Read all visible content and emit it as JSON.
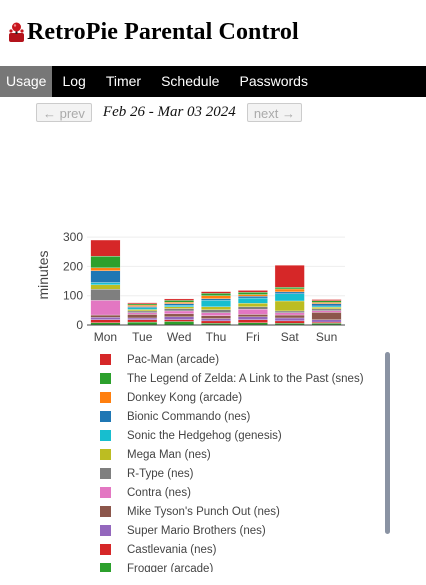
{
  "app": {
    "title": "RetroPie Parental Control",
    "logo_icon": "joystick-icon"
  },
  "nav": {
    "tabs": [
      {
        "label": "Usage",
        "active": true
      },
      {
        "label": "Log"
      },
      {
        "label": "Timer"
      },
      {
        "label": "Schedule"
      },
      {
        "label": "Passwords"
      }
    ]
  },
  "week": {
    "prev_label": "← prev",
    "range": "Feb 26 - Mar 03 2024",
    "next_label": "next →"
  },
  "chart_data": {
    "type": "bar",
    "stacked": true,
    "ylabel": "minutes",
    "ylim": [
      0,
      350
    ],
    "yticks": [
      0,
      100,
      200,
      300
    ],
    "categories": [
      "Mon",
      "Tue",
      "Wed",
      "Thu",
      "Fri",
      "Sat",
      "Sun"
    ],
    "series": [
      {
        "name": "Pac-Man (arcade)",
        "color": "#d62728",
        "values": [
          55,
          4,
          5,
          6,
          6,
          75,
          4
        ]
      },
      {
        "name": "The Legend of Zelda: A Link to the Past (snes)",
        "color": "#2ca02c",
        "values": [
          40,
          4,
          6,
          8,
          8,
          6,
          6
        ]
      },
      {
        "name": "Donkey Kong (arcade)",
        "color": "#ff7f0e",
        "values": [
          10,
          5,
          5,
          10,
          6,
          10,
          4
        ]
      },
      {
        "name": "Bionic Commando (nes)",
        "color": "#1f77b4",
        "values": [
          40,
          4,
          6,
          6,
          6,
          6,
          8
        ]
      },
      {
        "name": "Sonic the Hedgehog (genesis)",
        "color": "#17becf",
        "values": [
          8,
          6,
          5,
          22,
          18,
          25,
          4
        ]
      },
      {
        "name": "Mega Man (nes)",
        "color": "#bcbd22",
        "values": [
          15,
          5,
          6,
          10,
          12,
          34,
          6
        ]
      },
      {
        "name": "R-Type (nes)",
        "color": "#7f7f7f",
        "values": [
          38,
          6,
          8,
          10,
          8,
          6,
          6
        ]
      },
      {
        "name": "Contra (nes)",
        "color": "#e377c2",
        "values": [
          50,
          6,
          10,
          10,
          18,
          8,
          6
        ]
      },
      {
        "name": "Mike Tyson's Punch Out (nes)",
        "color": "#8c564b",
        "values": [
          8,
          12,
          10,
          10,
          8,
          10,
          25
        ]
      },
      {
        "name": "Super Mario Brothers (nes)",
        "color": "#9467bd",
        "values": [
          8,
          6,
          10,
          8,
          10,
          10,
          8
        ]
      },
      {
        "name": "Castlevania (nes)",
        "color": "#d62728",
        "values": [
          10,
          8,
          6,
          8,
          10,
          8,
          4
        ]
      },
      {
        "name": "Frogger (arcade)",
        "color": "#2ca02c",
        "values": [
          8,
          10,
          12,
          6,
          8,
          6,
          6
        ]
      }
    ]
  }
}
